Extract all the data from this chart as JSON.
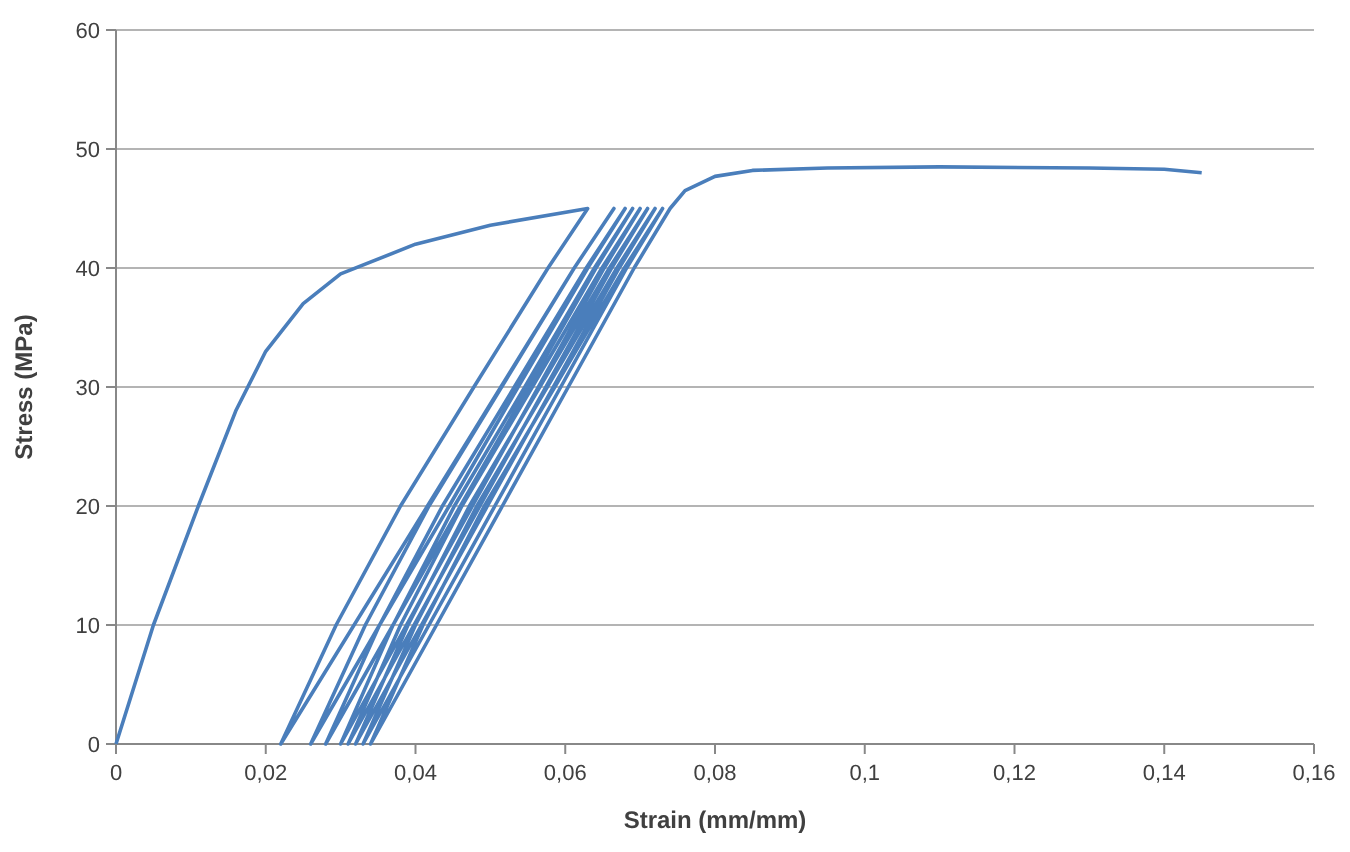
{
  "chart_data": {
    "type": "line",
    "xlabel": "Strain (mm/mm)",
    "ylabel": "Stress (MPa)",
    "xlim": [
      0,
      0.16
    ],
    "ylim": [
      0,
      60
    ],
    "xticks": [
      0,
      {
        "value": 0.02,
        "label": "0,02"
      },
      {
        "value": 0.04,
        "label": "0,04"
      },
      {
        "value": 0.06,
        "label": "0,06"
      },
      {
        "value": 0.08,
        "label": "0,08"
      },
      {
        "value": 0.1,
        "label": "0,1"
      },
      {
        "value": 0.12,
        "label": "0,12"
      },
      {
        "value": 0.14,
        "label": "0,14"
      },
      {
        "value": 0.16,
        "label": "0,16"
      }
    ],
    "yticks": [
      0,
      10,
      20,
      30,
      40,
      50,
      60
    ],
    "grid": "y",
    "marker": "none",
    "line_style": "solid",
    "series": [
      {
        "color": "#4a7ebb",
        "x": [
          0,
          0.005,
          0.011,
          0.016,
          0.02,
          0.025,
          0.03,
          0.04,
          0.05,
          0.063,
          0.0577,
          0.0478,
          0.038,
          0.0294,
          0.022,
          0.0318,
          0.0416,
          0.0514,
          0.0612,
          0.0665,
          0.0612,
          0.0515,
          0.0418,
          0.0333,
          0.026,
          0.0352,
          0.0445,
          0.0537,
          0.063,
          0.068,
          0.0628,
          0.0532,
          0.0436,
          0.0352,
          0.028,
          0.037,
          0.046,
          0.0551,
          0.0641,
          0.069,
          0.0639,
          0.0546,
          0.0452,
          0.037,
          0.03,
          0.0388,
          0.0476,
          0.0564,
          0.0652,
          0.07,
          0.0649,
          0.0556,
          0.0462,
          0.038,
          0.031,
          0.0398,
          0.0486,
          0.0574,
          0.0662,
          0.071,
          0.0659,
          0.0566,
          0.0472,
          0.039,
          0.032,
          0.0408,
          0.0496,
          0.0584,
          0.0672,
          0.072,
          0.0669,
          0.0576,
          0.0482,
          0.04,
          0.033,
          0.0418,
          0.0506,
          0.0594,
          0.0682,
          0.073,
          0.0679,
          0.0586,
          0.0492,
          0.041,
          0.034,
          0.0428,
          0.0516,
          0.0604,
          0.0692,
          0.074,
          0.076,
          0.08,
          0.085,
          0.095,
          0.11,
          0.13,
          0.14,
          0.145
        ],
        "values": [
          0,
          10,
          20,
          28,
          33,
          37,
          39.5,
          42,
          43.6,
          45,
          40,
          30,
          20,
          10,
          0,
          10,
          20,
          30,
          40,
          45,
          40,
          30,
          20,
          10,
          0,
          10,
          20,
          30,
          40,
          45,
          40,
          30,
          20,
          10,
          0,
          10,
          20,
          30,
          40,
          45,
          40,
          30,
          20,
          10,
          0,
          10,
          20,
          30,
          40,
          45,
          40,
          30,
          20,
          10,
          0,
          10,
          20,
          30,
          40,
          45,
          40,
          30,
          20,
          10,
          0,
          10,
          20,
          30,
          40,
          45,
          40,
          30,
          20,
          10,
          0,
          10,
          20,
          30,
          40,
          45,
          40,
          30,
          20,
          10,
          0,
          10,
          20,
          30,
          40,
          45,
          46.5,
          47.7,
          48.2,
          48.4,
          48.5,
          48.4,
          48.3,
          48
        ]
      }
    ]
  }
}
